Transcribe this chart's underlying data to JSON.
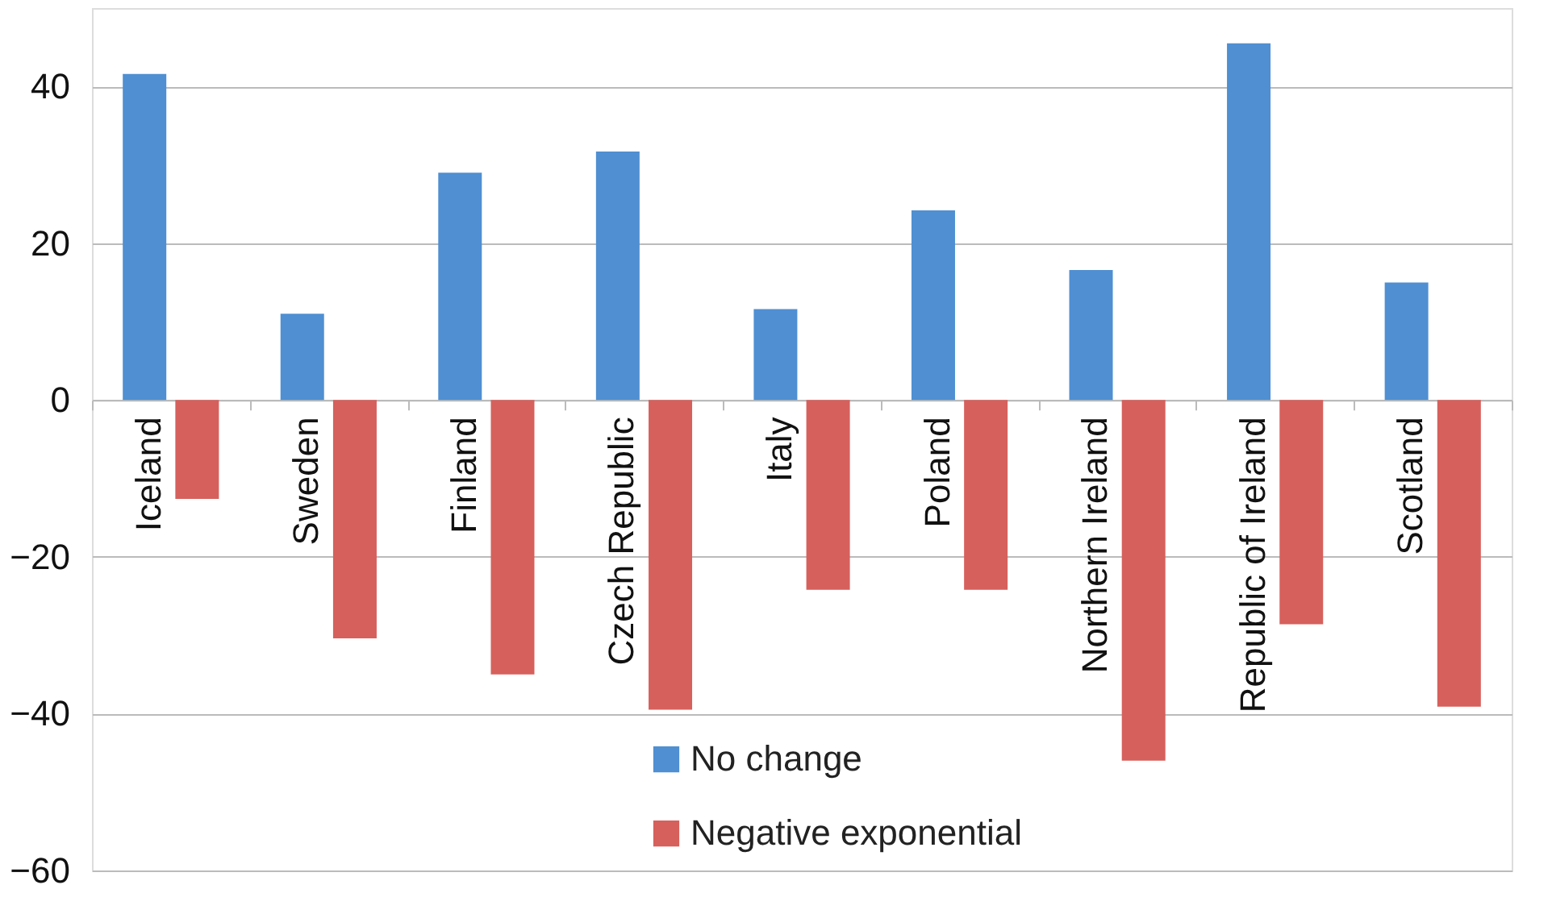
{
  "chart_data": {
    "type": "bar",
    "categories": [
      "Iceland",
      "Sweden",
      "Finland",
      "Czech Republic",
      "Italy",
      "Poland",
      "Northern Ireland",
      "Republic of Ireland",
      "Scotland"
    ],
    "series": [
      {
        "name": "No change",
        "color": "#4f8fd2",
        "values": [
          41.6,
          11,
          29,
          31.7,
          11.6,
          24.2,
          16.6,
          45.5,
          15
        ]
      },
      {
        "name": "Negative exponential",
        "color": "#d6605c",
        "values": [
          -12.6,
          -30.4,
          -35,
          -39.5,
          -24.2,
          -24.2,
          -46,
          -28.6,
          -39.1
        ]
      }
    ],
    "ylim": [
      -60,
      50
    ],
    "yticks": [
      -60,
      -40,
      -20,
      0,
      20,
      40
    ],
    "grid": "y",
    "legend": "bottom"
  }
}
